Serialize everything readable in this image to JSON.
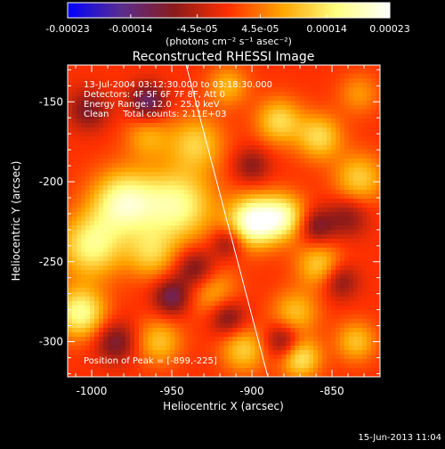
{
  "colorbar": {
    "tick_labels": [
      "-0.00023",
      "-0.00014",
      "-4.5e-05",
      "4.5e-05",
      "0.00014",
      "0.00023"
    ],
    "tick_values": [
      -0.00023,
      -0.00014,
      -4.5e-05,
      4.5e-05,
      0.00014,
      0.00023
    ],
    "range": [
      -0.00023,
      0.00023
    ],
    "unit_label": "(photons cm⁻² s⁻¹ asec⁻²)",
    "colors": [
      "#0000ff",
      "#5a2d8f",
      "#8b1a1a",
      "#ff3000",
      "#ffa500",
      "#ffff80",
      "#ffffff"
    ]
  },
  "chart_data": {
    "type": "heatmap",
    "title": "Reconstructed RHESSI Image",
    "xlabel": "Heliocentric X (arcsec)",
    "ylabel": "Heliocentric Y (arcsec)",
    "xlim": [
      -1015,
      -820
    ],
    "ylim": [
      -322,
      -127
    ],
    "x_ticks": [
      -1000,
      -950,
      -900,
      -850
    ],
    "y_ticks": [
      -300,
      -250,
      -200,
      -150
    ],
    "info_lines": [
      "13-Jul-2004 03:12:30.000 to 03:18:30.000",
      "Detectors: 4F 5F 6F 7F 8F, Att 0",
      "Energy Range: 12.0 - 25.0 keV",
      "Clean     Total counts: 2.11E+03"
    ],
    "peak_label": "Position of Peak = [-899,-225]",
    "peak": [
      -899,
      -225
    ],
    "limb_line": [
      [
        -941,
        -127
      ],
      [
        -890,
        -322
      ]
    ],
    "blobs": [
      {
        "x": -899,
        "y": -225,
        "amp": 1.0,
        "s": 11
      },
      {
        "x": -880,
        "y": -222,
        "amp": 0.7,
        "s": 10
      },
      {
        "x": -947,
        "y": -215,
        "amp": 0.75,
        "s": 16
      },
      {
        "x": -980,
        "y": -213,
        "amp": 0.8,
        "s": 14
      },
      {
        "x": -1000,
        "y": -240,
        "amp": 0.7,
        "s": 14
      },
      {
        "x": -1007,
        "y": -282,
        "amp": 0.75,
        "s": 11
      },
      {
        "x": -963,
        "y": -245,
        "amp": 0.45,
        "s": 11
      },
      {
        "x": -935,
        "y": -176,
        "amp": 0.5,
        "s": 12
      },
      {
        "x": -965,
        "y": -172,
        "amp": 0.35,
        "s": 10
      },
      {
        "x": -883,
        "y": -162,
        "amp": 0.55,
        "s": 10
      },
      {
        "x": -858,
        "y": -172,
        "amp": 0.55,
        "s": 10
      },
      {
        "x": -833,
        "y": -198,
        "amp": 0.5,
        "s": 11
      },
      {
        "x": -858,
        "y": -252,
        "amp": 0.5,
        "s": 10
      },
      {
        "x": -873,
        "y": -282,
        "amp": 0.45,
        "s": 10
      },
      {
        "x": -925,
        "y": -268,
        "amp": 0.4,
        "s": 11
      },
      {
        "x": -958,
        "y": -300,
        "amp": 0.45,
        "s": 10
      },
      {
        "x": -905,
        "y": -305,
        "amp": 0.5,
        "s": 10
      },
      {
        "x": -870,
        "y": -310,
        "amp": 0.65,
        "s": 9
      },
      {
        "x": -835,
        "y": -300,
        "amp": 0.45,
        "s": 9
      },
      {
        "x": -915,
        "y": -140,
        "amp": 0.4,
        "s": 9
      },
      {
        "x": -833,
        "y": -145,
        "amp": 0.3,
        "s": 9
      },
      {
        "x": -965,
        "y": -150,
        "amp": -0.6,
        "s": 8
      },
      {
        "x": -950,
        "y": -272,
        "amp": -0.55,
        "s": 8
      },
      {
        "x": -935,
        "y": -255,
        "amp": -0.5,
        "s": 9
      },
      {
        "x": -915,
        "y": -285,
        "amp": -0.45,
        "s": 8
      },
      {
        "x": -880,
        "y": -300,
        "amp": -0.5,
        "s": 8
      },
      {
        "x": -985,
        "y": -300,
        "amp": -0.45,
        "s": 9
      },
      {
        "x": -1002,
        "y": -155,
        "amp": -0.4,
        "s": 9
      },
      {
        "x": -860,
        "y": -228,
        "amp": -0.45,
        "s": 8
      },
      {
        "x": -845,
        "y": -262,
        "amp": -0.4,
        "s": 8
      },
      {
        "x": -915,
        "y": -238,
        "amp": -0.4,
        "s": 7
      },
      {
        "x": -900,
        "y": -190,
        "amp": -0.35,
        "s": 8
      },
      {
        "x": -840,
        "y": -222,
        "amp": -0.35,
        "s": 9
      }
    ]
  },
  "timestamp": "15-Jun-2013 11:04"
}
